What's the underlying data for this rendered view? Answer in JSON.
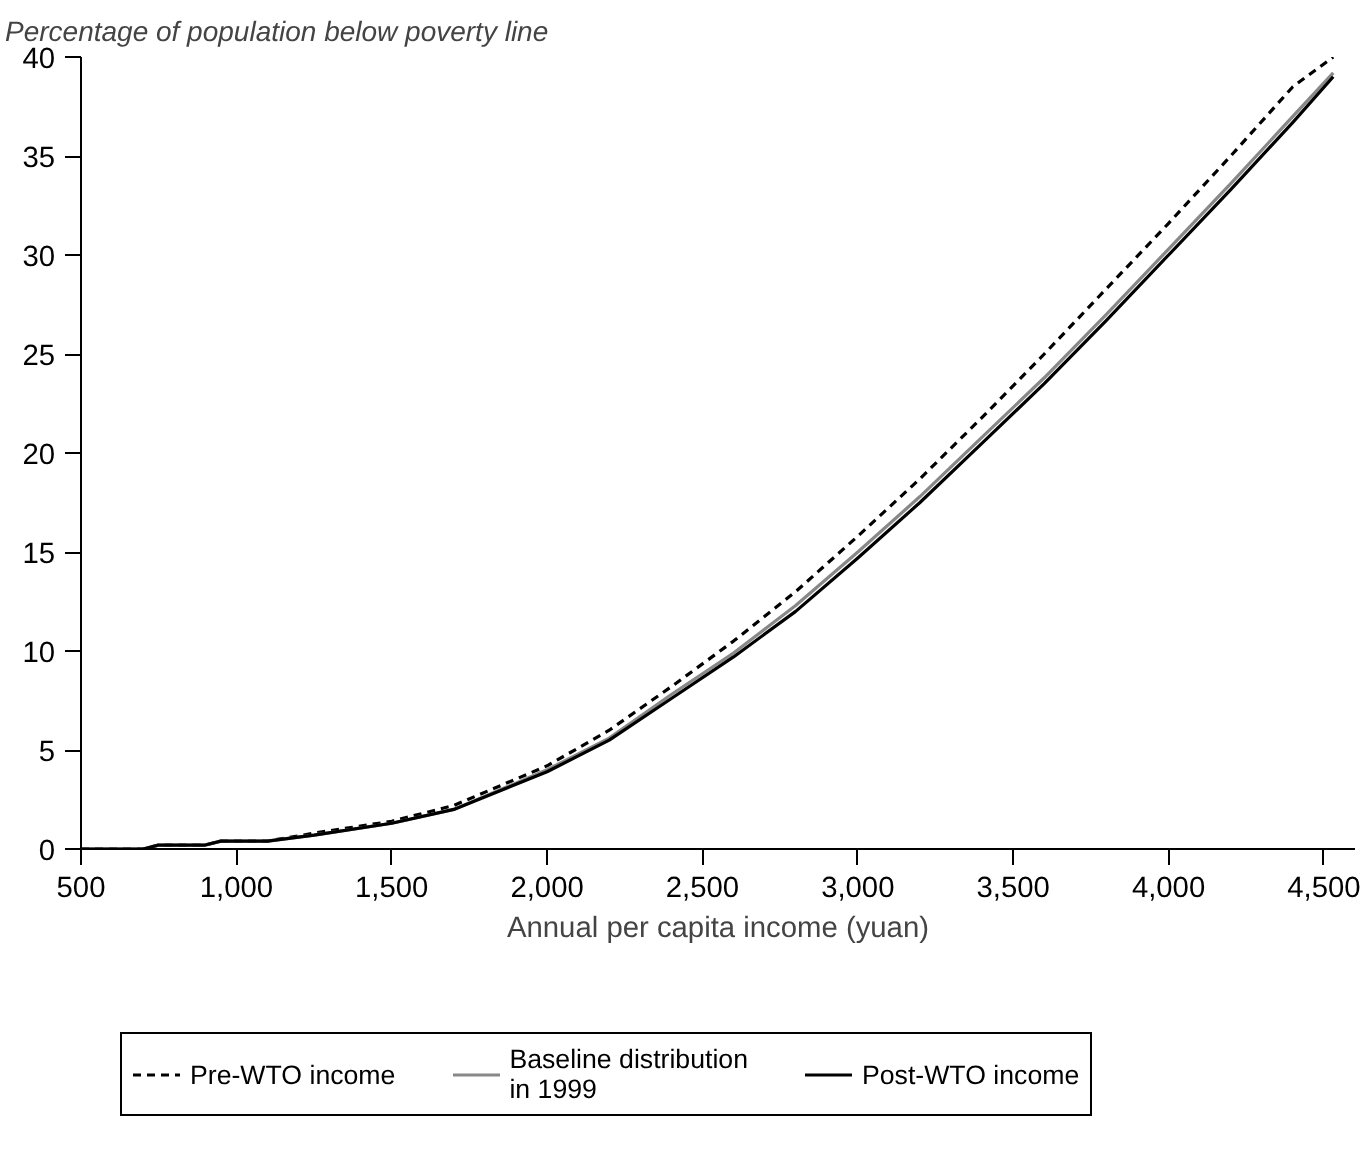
{
  "chart_data": {
    "type": "line",
    "ylabel": "Percentage of population below poverty line",
    "xlabel": "Annual per capita income (yuan)",
    "xlim": [
      500,
      4600
    ],
    "ylim": [
      0,
      40
    ],
    "xticks": [
      {
        "value": 500,
        "label": "500"
      },
      {
        "value": 1000,
        "label": "1,000"
      },
      {
        "value": 1500,
        "label": "1,500"
      },
      {
        "value": 2000,
        "label": "2,000"
      },
      {
        "value": 2500,
        "label": "2,500"
      },
      {
        "value": 3000,
        "label": "3,000"
      },
      {
        "value": 3500,
        "label": "3,500"
      },
      {
        "value": 4000,
        "label": "4,000"
      },
      {
        "value": 4500,
        "label": "4,500"
      }
    ],
    "yticks": [
      0,
      5,
      10,
      15,
      20,
      25,
      30,
      35,
      40
    ],
    "x": [
      500,
      700,
      750,
      900,
      950,
      1100,
      1250,
      1500,
      1700,
      2000,
      2200,
      2400,
      2600,
      2800,
      3000,
      3200,
      3400,
      3600,
      3800,
      4000,
      4200,
      4400,
      4530
    ],
    "series": [
      {
        "name": "Pre-WTO income",
        "color": "#000000",
        "line_style": "dashed",
        "values": [
          0,
          0,
          0.2,
          0.2,
          0.4,
          0.4,
          0.8,
          1.4,
          2.2,
          4.2,
          6.0,
          8.2,
          10.5,
          13.0,
          15.8,
          18.7,
          21.8,
          25.0,
          28.3,
          31.6,
          35.0,
          38.5,
          40
        ]
      },
      {
        "name": "Baseline distribution\nin 1999",
        "color": "#888888",
        "line_style": "solid",
        "values": [
          0,
          0,
          0.2,
          0.2,
          0.4,
          0.4,
          0.7,
          1.3,
          2.0,
          4.0,
          5.6,
          7.8,
          9.9,
          12.3,
          15.0,
          17.8,
          20.8,
          23.8,
          27.0,
          30.3,
          33.6,
          37.0,
          39.2
        ]
      },
      {
        "name": "Post-WTO income",
        "color": "#000000",
        "line_style": "solid",
        "values": [
          0,
          0,
          0.2,
          0.2,
          0.4,
          0.4,
          0.7,
          1.3,
          2.0,
          3.9,
          5.5,
          7.6,
          9.7,
          12.0,
          14.7,
          17.5,
          20.5,
          23.5,
          26.7,
          30.0,
          33.3,
          36.7,
          39.0
        ]
      }
    ],
    "grid": false,
    "legend": "bottom"
  }
}
